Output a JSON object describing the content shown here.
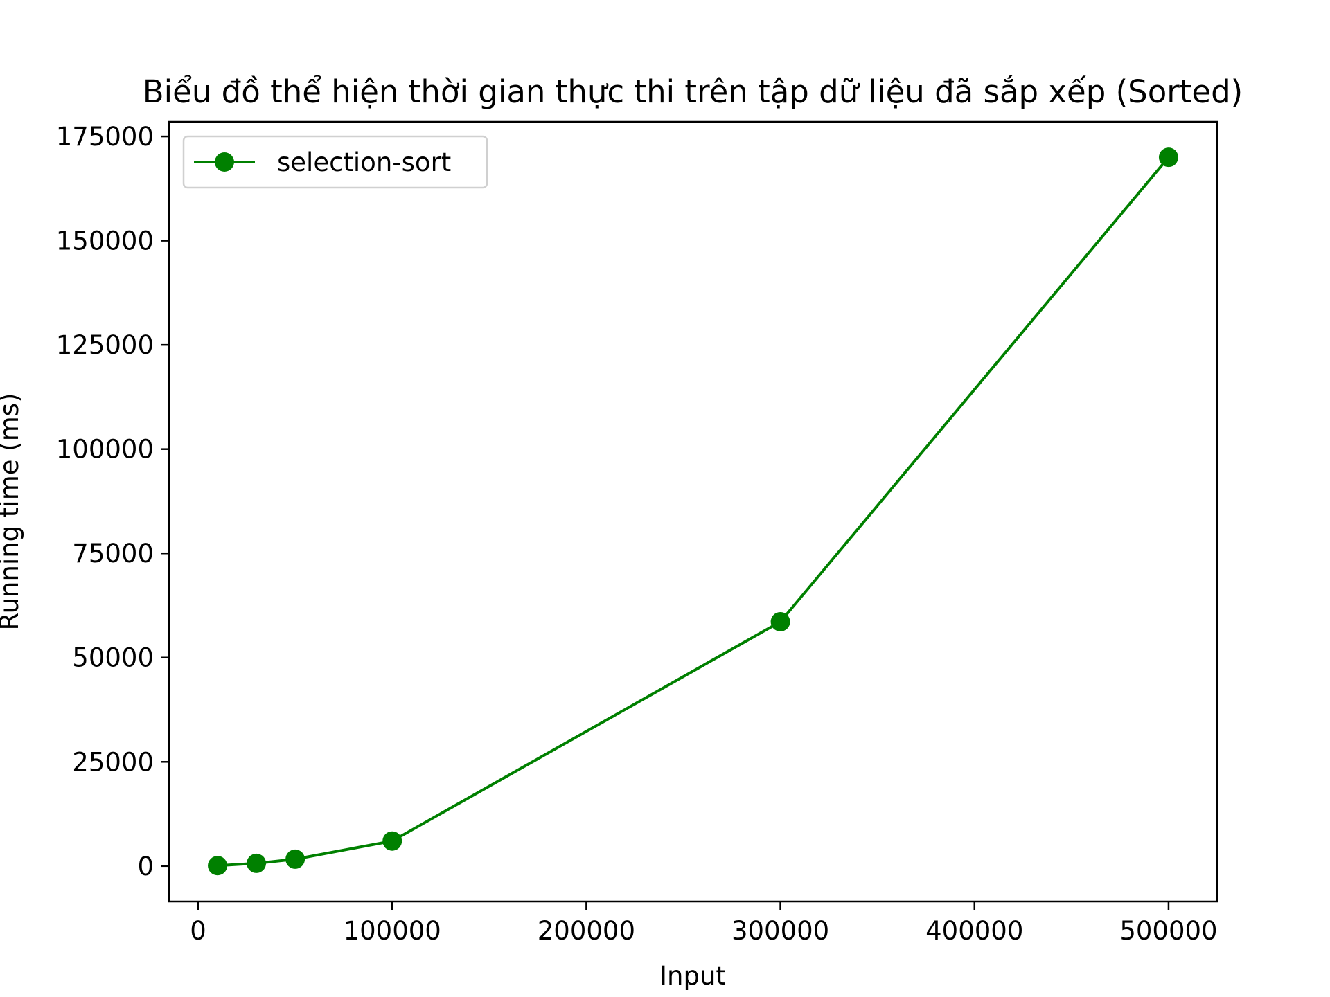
{
  "chart_data": {
    "type": "line",
    "title": "Biểu đồ thể hiện thời gian thực thi trên tập dữ liệu đã sắp xếp (Sorted)",
    "xlabel": "Input",
    "ylabel": "Running time (ms)",
    "xlim": [
      -15000,
      525000
    ],
    "ylim": [
      -8500,
      178500
    ],
    "x_ticks": [
      0,
      100000,
      200000,
      300000,
      400000,
      500000
    ],
    "y_ticks": [
      0,
      25000,
      50000,
      75000,
      100000,
      125000,
      150000,
      175000
    ],
    "x": [
      10000,
      30000,
      50000,
      100000,
      300000,
      500000
    ],
    "series": [
      {
        "name": "selection-sort",
        "values": [
          100,
          650,
          1650,
          6000,
          58600,
          170000
        ],
        "color": "#008000",
        "marker": "circle"
      }
    ],
    "legend_position": "top-left",
    "grid": false
  }
}
